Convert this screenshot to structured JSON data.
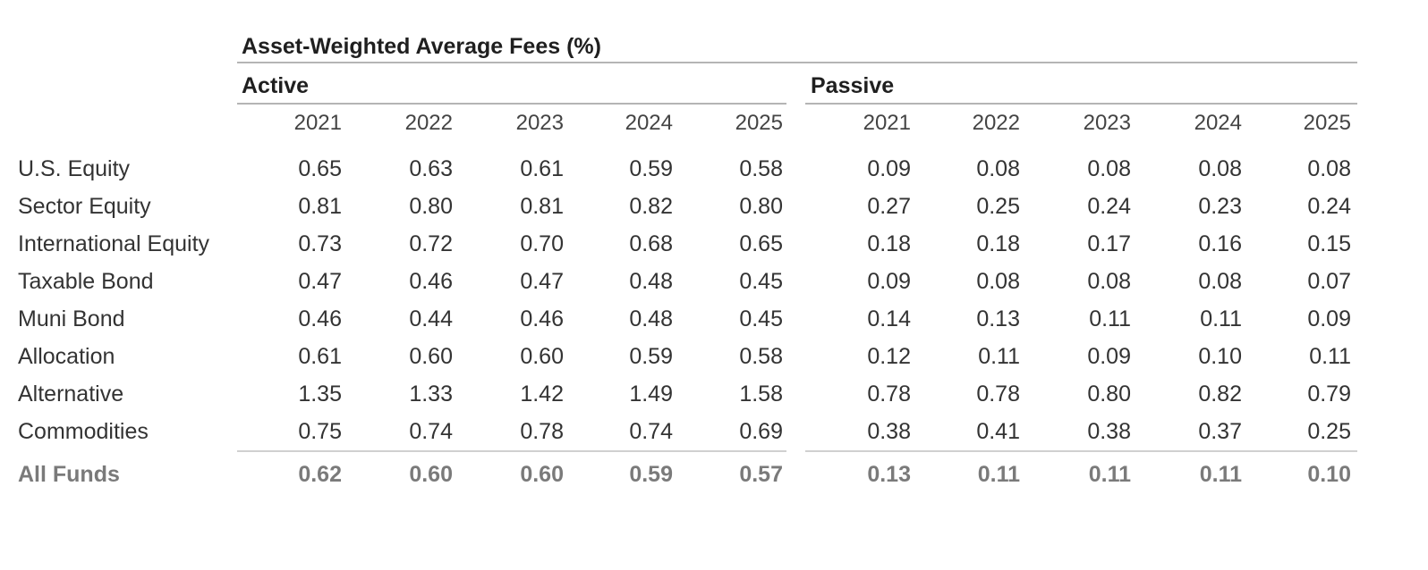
{
  "chart_data": {
    "type": "table",
    "title": "Asset-Weighted Average Fees (%)",
    "groups": [
      {
        "name": "Active",
        "years": [
          "2021",
          "2022",
          "2023",
          "2024",
          "2025"
        ]
      },
      {
        "name": "Passive",
        "years": [
          "2021",
          "2022",
          "2023",
          "2024",
          "2025"
        ]
      }
    ],
    "rows": [
      {
        "label": "U.S. Equity",
        "active": [
          "0.65",
          "0.63",
          "0.61",
          "0.59",
          "0.58"
        ],
        "passive": [
          "0.09",
          "0.08",
          "0.08",
          "0.08",
          "0.08"
        ]
      },
      {
        "label": "Sector Equity",
        "active": [
          "0.81",
          "0.80",
          "0.81",
          "0.82",
          "0.80"
        ],
        "passive": [
          "0.27",
          "0.25",
          "0.24",
          "0.23",
          "0.24"
        ]
      },
      {
        "label": "International Equity",
        "active": [
          "0.73",
          "0.72",
          "0.70",
          "0.68",
          "0.65"
        ],
        "passive": [
          "0.18",
          "0.18",
          "0.17",
          "0.16",
          "0.15"
        ]
      },
      {
        "label": "Taxable Bond",
        "active": [
          "0.47",
          "0.46",
          "0.47",
          "0.48",
          "0.45"
        ],
        "passive": [
          "0.09",
          "0.08",
          "0.08",
          "0.08",
          "0.07"
        ]
      },
      {
        "label": "Muni Bond",
        "active": [
          "0.46",
          "0.44",
          "0.46",
          "0.48",
          "0.45"
        ],
        "passive": [
          "0.14",
          "0.13",
          "0.11",
          "0.11",
          "0.09"
        ]
      },
      {
        "label": "Allocation",
        "active": [
          "0.61",
          "0.60",
          "0.60",
          "0.59",
          "0.58"
        ],
        "passive": [
          "0.12",
          "0.11",
          "0.09",
          "0.10",
          "0.11"
        ]
      },
      {
        "label": "Alternative",
        "active": [
          "1.35",
          "1.33",
          "1.42",
          "1.49",
          "1.58"
        ],
        "passive": [
          "0.78",
          "0.78",
          "0.80",
          "0.82",
          "0.79"
        ]
      },
      {
        "label": "Commodities",
        "active": [
          "0.75",
          "0.74",
          "0.78",
          "0.74",
          "0.69"
        ],
        "passive": [
          "0.38",
          "0.41",
          "0.38",
          "0.37",
          "0.25"
        ]
      }
    ],
    "total": {
      "label": "All Funds",
      "active": [
        "0.62",
        "0.60",
        "0.60",
        "0.59",
        "0.57"
      ],
      "passive": [
        "0.13",
        "0.11",
        "0.11",
        "0.11",
        "0.10"
      ]
    }
  }
}
